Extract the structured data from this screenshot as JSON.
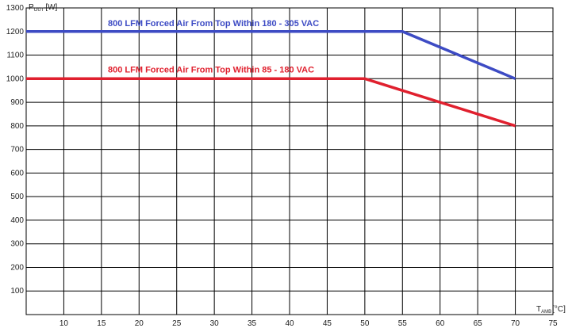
{
  "chart_data": {
    "type": "line",
    "title": "",
    "xlabel": {
      "symbol": "T",
      "sub": "AMB",
      "unit": "[°C]"
    },
    "ylabel": {
      "symbol": "P",
      "sub": "OUT",
      "unit": "[W]"
    },
    "xlim": [
      5,
      75
    ],
    "ylim": [
      0,
      1300
    ],
    "xticks": [
      10,
      15,
      20,
      25,
      30,
      35,
      40,
      45,
      50,
      55,
      60,
      65,
      70,
      75
    ],
    "yticks": [
      100,
      200,
      300,
      400,
      500,
      600,
      700,
      800,
      900,
      1000,
      1100,
      1200,
      1300
    ],
    "grid": true,
    "series": [
      {
        "name": "800 LFM Forced Air From Top Within 180 - 305 VAC",
        "color": "#3d4bc4",
        "x": [
          5,
          55,
          70
        ],
        "y": [
          1200,
          1200,
          1000
        ]
      },
      {
        "name": "800 LFM Forced Air From Top Within 85 - 180 VAC",
        "color": "#e0202e",
        "x": [
          5,
          50,
          70
        ],
        "y": [
          1000,
          1000,
          800
        ]
      }
    ]
  }
}
